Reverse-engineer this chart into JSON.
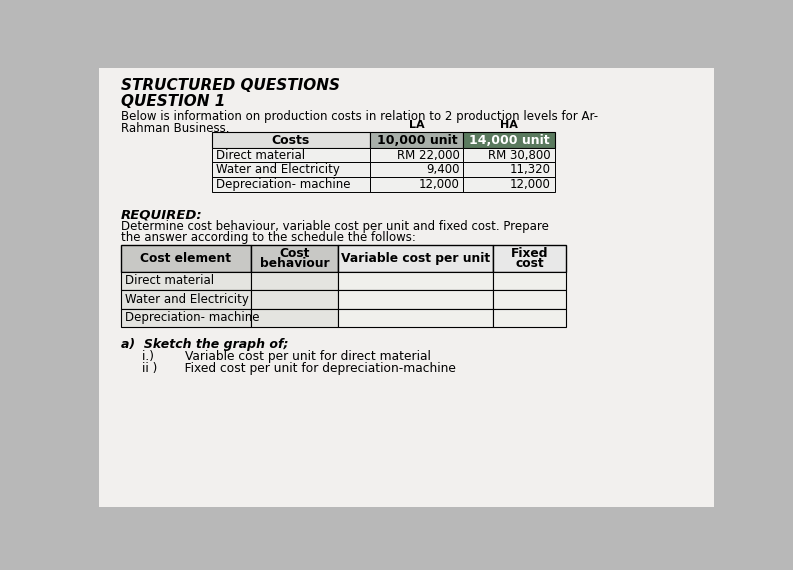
{
  "title1": "STRUCTURED QUESTIONS",
  "title2": "QUESTION 1",
  "intro_line1": "Below is information on production costs in relation to 2 production levels for Ar-",
  "intro_line2": "Rahman Business.",
  "col_la": "LA",
  "col_ha": "HA",
  "col_la_unit": "10,000 unit",
  "col_ha_unit": "14,000 unit",
  "table1_costs_header": "Costs",
  "table1_rows": [
    [
      "Direct material",
      "RM 22,000",
      "RM 30,800"
    ],
    [
      "Water and Electricity",
      "9,400",
      "11,320"
    ],
    [
      "Depreciation- machine",
      "12,000",
      "12,000"
    ]
  ],
  "required_text": "REQUIRED:",
  "required_line1": "Determine cost behaviour, variable cost per unit and fixed cost. Prepare",
  "required_line2": "the answer according to the schedule the follows:",
  "table2_headers": [
    "Cost element",
    "Cost\nbehaviour",
    "Variable cost per unit",
    "Fixed\ncost"
  ],
  "table2_rows": [
    [
      "Direct material",
      "",
      "",
      ""
    ],
    [
      "Water and Electricity",
      "",
      "",
      ""
    ],
    [
      "Depreciation- machine",
      "",
      "",
      ""
    ]
  ],
  "sketch_text": "a)  Sketch the graph of;",
  "sketch_i": "i.)        Variable cost per unit for direct material",
  "sketch_ii": "ii )       Fixed cost per unit for depreciation-machine",
  "bg_color": "#b8b8b8",
  "paper_color": "#f2f0ee",
  "header_gray": "#a8afa9",
  "header_dark": "#5a7a5e",
  "cell_light": "#e8ece9",
  "table2_header_gray": "#c8c8c8",
  "table2_cell_gray": "#dcdcdc"
}
